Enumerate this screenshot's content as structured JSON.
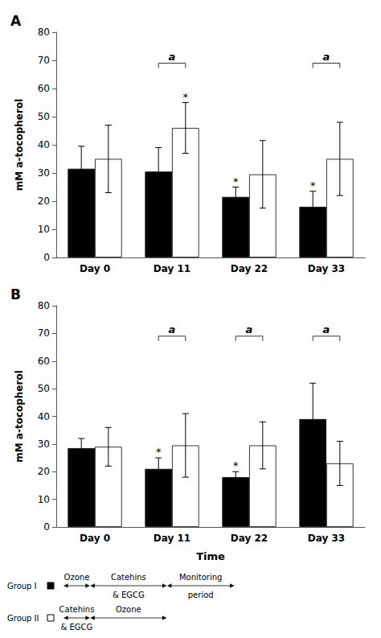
{
  "chart_data": [
    {
      "type": "bar",
      "title": "A",
      "categories": [
        "Day 0",
        "Day 11",
        "Day 22",
        "Day 33"
      ],
      "ylabel": "mM a-tocopherol",
      "ylim": [
        0,
        80
      ],
      "yticks": [
        0,
        10,
        20,
        30,
        40,
        50,
        60,
        70,
        80
      ],
      "grid": false,
      "series": [
        {
          "name": "Group I",
          "color": "#000000",
          "values": [
            31.5,
            30.5,
            21.5,
            18.0
          ],
          "errors": [
            8.0,
            8.5,
            3.5,
            5.5
          ],
          "stars": [
            false,
            false,
            true,
            true
          ]
        },
        {
          "name": "Group II",
          "color": "#ffffff",
          "values": [
            35.0,
            46.0,
            29.5,
            35.0
          ],
          "errors": [
            12.0,
            9.0,
            12.0,
            13.0
          ],
          "stars": [
            false,
            true,
            false,
            false
          ]
        }
      ],
      "star_label": "*",
      "annotations": [
        {
          "text": "a",
          "category": "Day 11",
          "y": 69
        },
        {
          "text": "a",
          "category": "Day 33",
          "y": 69
        }
      ]
    },
    {
      "type": "bar",
      "title": "B",
      "categories": [
        "Day 0",
        "Day 11",
        "Day 22",
        "Day 33"
      ],
      "ylabel": "mM a-tocopherol",
      "xlabel": "Time",
      "ylim": [
        0,
        80
      ],
      "yticks": [
        0,
        10,
        20,
        30,
        40,
        50,
        60,
        70,
        80
      ],
      "grid": false,
      "series": [
        {
          "name": "Group I",
          "color": "#000000",
          "values": [
            28.5,
            21.0,
            18.0,
            39.0
          ],
          "errors": [
            3.5,
            4.0,
            2.0,
            13.0
          ],
          "stars": [
            false,
            true,
            true,
            false
          ]
        },
        {
          "name": "Group II",
          "color": "#ffffff",
          "values": [
            29.0,
            29.5,
            29.5,
            23.0
          ],
          "errors": [
            7.0,
            11.5,
            8.5,
            8.0
          ],
          "stars": [
            false,
            false,
            false,
            false
          ]
        }
      ],
      "star_label": "*",
      "annotations": [
        {
          "text": "a",
          "category": "Day 11",
          "y": 69
        },
        {
          "text": "a",
          "category": "Day 22",
          "y": 69
        },
        {
          "text": "a",
          "category": "Day 33",
          "y": 69
        }
      ],
      "timeline": [
        {
          "series": "Group I",
          "phases": [
            [
              "Ozone"
            ],
            [
              "Catehins",
              "& EGCG"
            ],
            [
              "Monitoring",
              "period"
            ]
          ]
        },
        {
          "series": "Group II",
          "phases": [
            [
              "Catehins",
              "& EGCG"
            ],
            [
              "Ozone"
            ]
          ]
        }
      ]
    }
  ]
}
